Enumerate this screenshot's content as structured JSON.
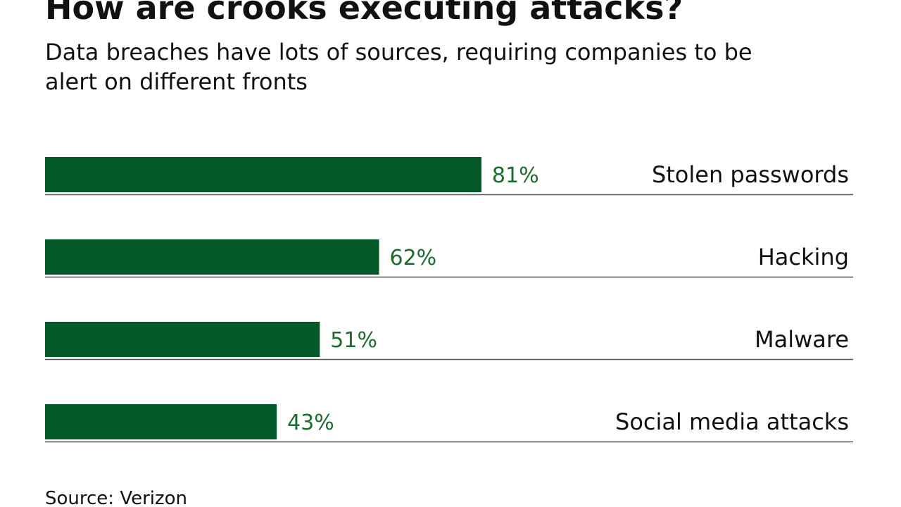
{
  "title": "How are crooks executing attacks?",
  "subtitle": "Data breaches have lots of sources, requiring companies to be alert on different fronts",
  "source": "Source: Verizon",
  "colors": {
    "bar": "#035a29",
    "value_label": "#1a6b2e",
    "category_label": "#111111",
    "baseline": "#555555"
  },
  "chart_data": {
    "type": "bar",
    "orientation": "horizontal",
    "categories": [
      "Stolen passwords",
      "Hacking",
      "Malware",
      "Social media attacks"
    ],
    "values": [
      81,
      62,
      51,
      43
    ],
    "value_labels": [
      "81%",
      "62%",
      "51%",
      "43%"
    ],
    "xlim": [
      0,
      150
    ],
    "grid": false,
    "legend": "none"
  }
}
